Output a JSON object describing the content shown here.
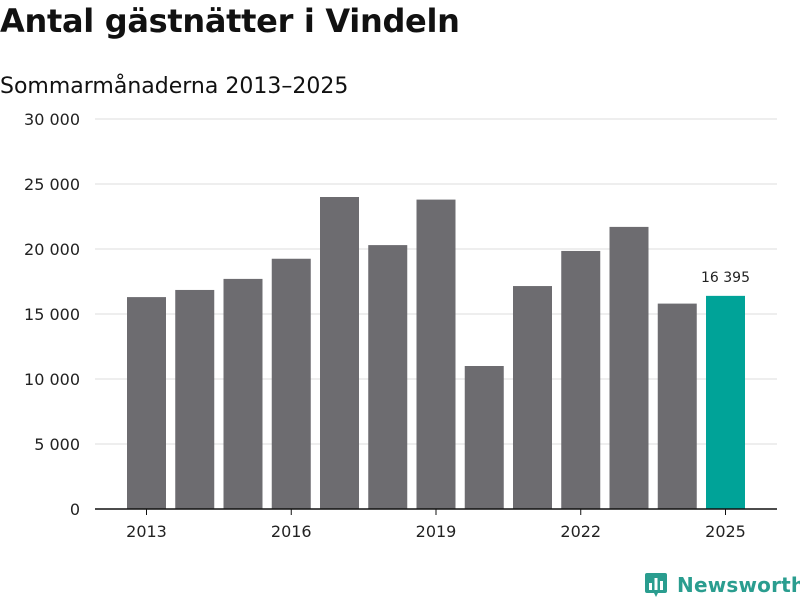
{
  "title": "Antal gästnätter i Vindeln",
  "subtitle": "Sommarmånaderna 2013–2025",
  "brand": {
    "name": "Newsworthy",
    "color": "#2a9d8f",
    "icon": "bar-chart-icon"
  },
  "colors": {
    "bar": "#6d6c70",
    "highlight": "#00a398",
    "grid": "#dcdcdc",
    "axis": "#111111"
  },
  "chart_data": {
    "type": "bar",
    "categories": [
      "2013",
      "2014",
      "2015",
      "2016",
      "2017",
      "2018",
      "2019",
      "2020",
      "2021",
      "2022",
      "2023",
      "2024",
      "2025"
    ],
    "values": [
      16300,
      16850,
      17700,
      19250,
      24000,
      20300,
      23800,
      11000,
      17150,
      19850,
      21700,
      15800,
      16395
    ],
    "highlight_index": 12,
    "highlight_label": "16 395",
    "ylim": [
      0,
      30000
    ],
    "yticks": [
      0,
      5000,
      10000,
      15000,
      20000,
      25000,
      30000
    ],
    "ytick_labels": [
      "0",
      "5 000",
      "10 000",
      "15 000",
      "20 000",
      "25 000",
      "30 000"
    ],
    "xtick_labels": [
      "2013",
      "2016",
      "2019",
      "2022",
      "2025"
    ],
    "xtick_categories": [
      "2013",
      "2016",
      "2019",
      "2022",
      "2025"
    ],
    "grid": true,
    "legend": "none"
  }
}
